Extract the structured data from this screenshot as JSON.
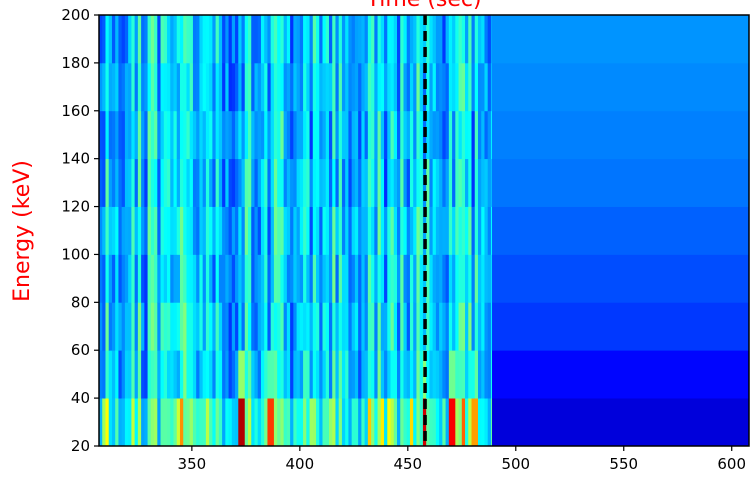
{
  "chart_data": {
    "type": "heatmap",
    "title": "Time (sec)",
    "xlabel": "",
    "ylabel": "Energy (keV)",
    "label_color": "#ff0000",
    "colormap": "jet",
    "xlim": [
      307,
      608
    ],
    "ylim": [
      20,
      200
    ],
    "xticks": [
      350,
      400,
      450,
      500,
      550,
      600
    ],
    "yticks": [
      20,
      40,
      60,
      80,
      100,
      120,
      140,
      160,
      180,
      200
    ],
    "energy_bins": [
      20,
      40,
      60,
      80,
      100,
      120,
      140,
      160,
      180,
      200
    ],
    "active_end_time": 489,
    "active_band_level": [
      0.42,
      0.34,
      0.34,
      0.33,
      0.34,
      0.33,
      0.32,
      0.33,
      0.33
    ],
    "background_band_level": [
      0.09,
      0.13,
      0.18,
      0.2,
      0.22,
      0.24,
      0.25,
      0.26,
      0.27
    ],
    "marker_time": 458,
    "marker_style": "dashed",
    "marker_color": "#000000",
    "bright_columns": [
      {
        "time": 372.5,
        "level": 0.95
      },
      {
        "time": 386,
        "level": 0.82
      },
      {
        "time": 457,
        "level": 0.92
      },
      {
        "time": 470,
        "level": 0.88
      },
      {
        "time": 475,
        "level": 0.78
      },
      {
        "time": 480,
        "level": 0.72
      }
    ]
  }
}
